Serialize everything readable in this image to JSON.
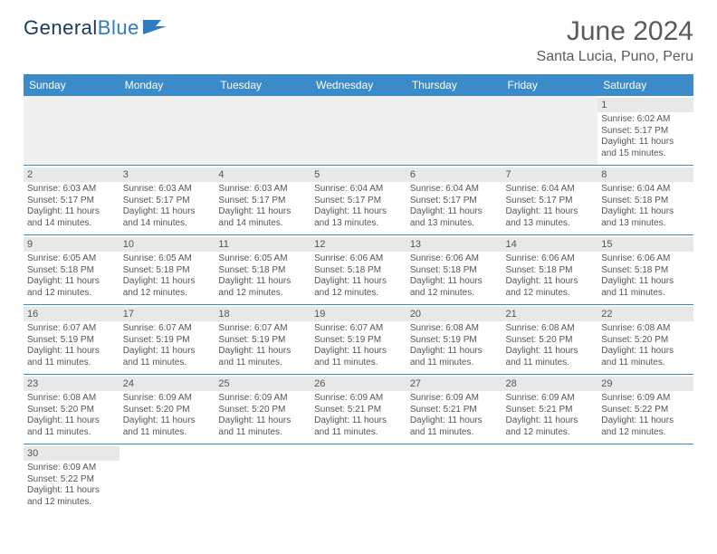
{
  "branding": {
    "text1": "General",
    "text2": "Blue"
  },
  "title": "June 2024",
  "location": "Santa Lucia, Puno, Peru",
  "colors": {
    "header_bg": "#3b8bc8",
    "header_text": "#ffffff",
    "stripe": "#e8e8e8",
    "border": "#3b8bc8",
    "text": "#555555",
    "title_color": "#5a5a5a"
  },
  "typography": {
    "title_fontsize": 30,
    "location_fontsize": 16,
    "dayhead_fontsize": 12,
    "daynum_fontsize": 11,
    "detail_fontsize": 10
  },
  "day_names": [
    "Sunday",
    "Monday",
    "Tuesday",
    "Wednesday",
    "Thursday",
    "Friday",
    "Saturday"
  ],
  "weeks": [
    [
      null,
      null,
      null,
      null,
      null,
      null,
      {
        "n": "1",
        "sr": "Sunrise: 6:02 AM",
        "ss": "Sunset: 5:17 PM",
        "dl": "Daylight: 11 hours and 15 minutes."
      }
    ],
    [
      {
        "n": "2",
        "sr": "Sunrise: 6:03 AM",
        "ss": "Sunset: 5:17 PM",
        "dl": "Daylight: 11 hours and 14 minutes."
      },
      {
        "n": "3",
        "sr": "Sunrise: 6:03 AM",
        "ss": "Sunset: 5:17 PM",
        "dl": "Daylight: 11 hours and 14 minutes."
      },
      {
        "n": "4",
        "sr": "Sunrise: 6:03 AM",
        "ss": "Sunset: 5:17 PM",
        "dl": "Daylight: 11 hours and 14 minutes."
      },
      {
        "n": "5",
        "sr": "Sunrise: 6:04 AM",
        "ss": "Sunset: 5:17 PM",
        "dl": "Daylight: 11 hours and 13 minutes."
      },
      {
        "n": "6",
        "sr": "Sunrise: 6:04 AM",
        "ss": "Sunset: 5:17 PM",
        "dl": "Daylight: 11 hours and 13 minutes."
      },
      {
        "n": "7",
        "sr": "Sunrise: 6:04 AM",
        "ss": "Sunset: 5:17 PM",
        "dl": "Daylight: 11 hours and 13 minutes."
      },
      {
        "n": "8",
        "sr": "Sunrise: 6:04 AM",
        "ss": "Sunset: 5:18 PM",
        "dl": "Daylight: 11 hours and 13 minutes."
      }
    ],
    [
      {
        "n": "9",
        "sr": "Sunrise: 6:05 AM",
        "ss": "Sunset: 5:18 PM",
        "dl": "Daylight: 11 hours and 12 minutes."
      },
      {
        "n": "10",
        "sr": "Sunrise: 6:05 AM",
        "ss": "Sunset: 5:18 PM",
        "dl": "Daylight: 11 hours and 12 minutes."
      },
      {
        "n": "11",
        "sr": "Sunrise: 6:05 AM",
        "ss": "Sunset: 5:18 PM",
        "dl": "Daylight: 11 hours and 12 minutes."
      },
      {
        "n": "12",
        "sr": "Sunrise: 6:06 AM",
        "ss": "Sunset: 5:18 PM",
        "dl": "Daylight: 11 hours and 12 minutes."
      },
      {
        "n": "13",
        "sr": "Sunrise: 6:06 AM",
        "ss": "Sunset: 5:18 PM",
        "dl": "Daylight: 11 hours and 12 minutes."
      },
      {
        "n": "14",
        "sr": "Sunrise: 6:06 AM",
        "ss": "Sunset: 5:18 PM",
        "dl": "Daylight: 11 hours and 12 minutes."
      },
      {
        "n": "15",
        "sr": "Sunrise: 6:06 AM",
        "ss": "Sunset: 5:18 PM",
        "dl": "Daylight: 11 hours and 11 minutes."
      }
    ],
    [
      {
        "n": "16",
        "sr": "Sunrise: 6:07 AM",
        "ss": "Sunset: 5:19 PM",
        "dl": "Daylight: 11 hours and 11 minutes."
      },
      {
        "n": "17",
        "sr": "Sunrise: 6:07 AM",
        "ss": "Sunset: 5:19 PM",
        "dl": "Daylight: 11 hours and 11 minutes."
      },
      {
        "n": "18",
        "sr": "Sunrise: 6:07 AM",
        "ss": "Sunset: 5:19 PM",
        "dl": "Daylight: 11 hours and 11 minutes."
      },
      {
        "n": "19",
        "sr": "Sunrise: 6:07 AM",
        "ss": "Sunset: 5:19 PM",
        "dl": "Daylight: 11 hours and 11 minutes."
      },
      {
        "n": "20",
        "sr": "Sunrise: 6:08 AM",
        "ss": "Sunset: 5:19 PM",
        "dl": "Daylight: 11 hours and 11 minutes."
      },
      {
        "n": "21",
        "sr": "Sunrise: 6:08 AM",
        "ss": "Sunset: 5:20 PM",
        "dl": "Daylight: 11 hours and 11 minutes."
      },
      {
        "n": "22",
        "sr": "Sunrise: 6:08 AM",
        "ss": "Sunset: 5:20 PM",
        "dl": "Daylight: 11 hours and 11 minutes."
      }
    ],
    [
      {
        "n": "23",
        "sr": "Sunrise: 6:08 AM",
        "ss": "Sunset: 5:20 PM",
        "dl": "Daylight: 11 hours and 11 minutes."
      },
      {
        "n": "24",
        "sr": "Sunrise: 6:09 AM",
        "ss": "Sunset: 5:20 PM",
        "dl": "Daylight: 11 hours and 11 minutes."
      },
      {
        "n": "25",
        "sr": "Sunrise: 6:09 AM",
        "ss": "Sunset: 5:20 PM",
        "dl": "Daylight: 11 hours and 11 minutes."
      },
      {
        "n": "26",
        "sr": "Sunrise: 6:09 AM",
        "ss": "Sunset: 5:21 PM",
        "dl": "Daylight: 11 hours and 11 minutes."
      },
      {
        "n": "27",
        "sr": "Sunrise: 6:09 AM",
        "ss": "Sunset: 5:21 PM",
        "dl": "Daylight: 11 hours and 11 minutes."
      },
      {
        "n": "28",
        "sr": "Sunrise: 6:09 AM",
        "ss": "Sunset: 5:21 PM",
        "dl": "Daylight: 11 hours and 12 minutes."
      },
      {
        "n": "29",
        "sr": "Sunrise: 6:09 AM",
        "ss": "Sunset: 5:22 PM",
        "dl": "Daylight: 11 hours and 12 minutes."
      }
    ],
    [
      {
        "n": "30",
        "sr": "Sunrise: 6:09 AM",
        "ss": "Sunset: 5:22 PM",
        "dl": "Daylight: 11 hours and 12 minutes."
      },
      null,
      null,
      null,
      null,
      null,
      null
    ]
  ]
}
